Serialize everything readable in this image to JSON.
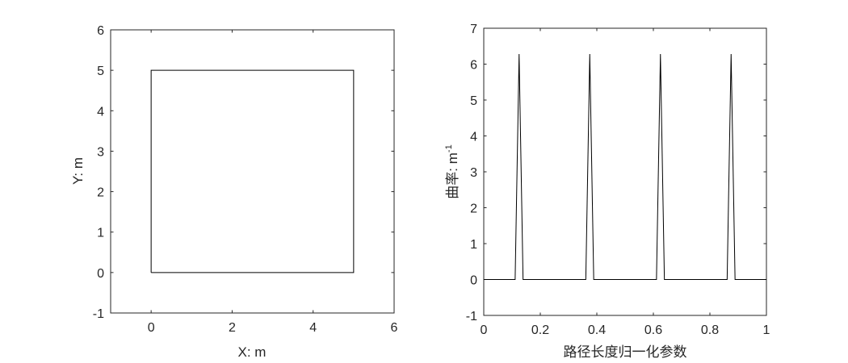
{
  "chart_data": [
    {
      "type": "line",
      "xlabel": "X: m",
      "ylabel": "Y: m",
      "xlim": [
        -1,
        6
      ],
      "ylim": [
        -1,
        6
      ],
      "xticks": [
        0,
        2,
        4,
        6
      ],
      "yticks": [
        -1,
        0,
        1,
        2,
        3,
        4,
        5,
        6
      ],
      "grid": false,
      "series": [
        {
          "x": [
            0,
            5,
            5,
            0,
            0
          ],
          "y": [
            0,
            0,
            5,
            5,
            0
          ]
        }
      ]
    },
    {
      "type": "line",
      "xlabel": "路径长度归一化参数",
      "ylabel_main": "曲率: m",
      "ylabel_sup": "-1",
      "xlim": [
        0,
        1
      ],
      "ylim": [
        -1,
        7
      ],
      "xticks": [
        0,
        0.2,
        0.4,
        0.6,
        0.8,
        1
      ],
      "xtick_labels": [
        "0",
        "0.2",
        "0.4",
        "0.6",
        "0.8",
        "1"
      ],
      "yticks": [
        -1,
        0,
        1,
        2,
        3,
        4,
        5,
        6,
        7
      ],
      "grid": false,
      "series": [
        {
          "x": [
            0,
            0.111,
            0.125,
            0.139,
            0.361,
            0.375,
            0.389,
            0.611,
            0.625,
            0.639,
            0.861,
            0.875,
            0.889,
            1
          ],
          "y": [
            0,
            0,
            6.28,
            0,
            0,
            6.28,
            0,
            0,
            6.28,
            0,
            0,
            6.28,
            0,
            0
          ]
        }
      ]
    }
  ]
}
